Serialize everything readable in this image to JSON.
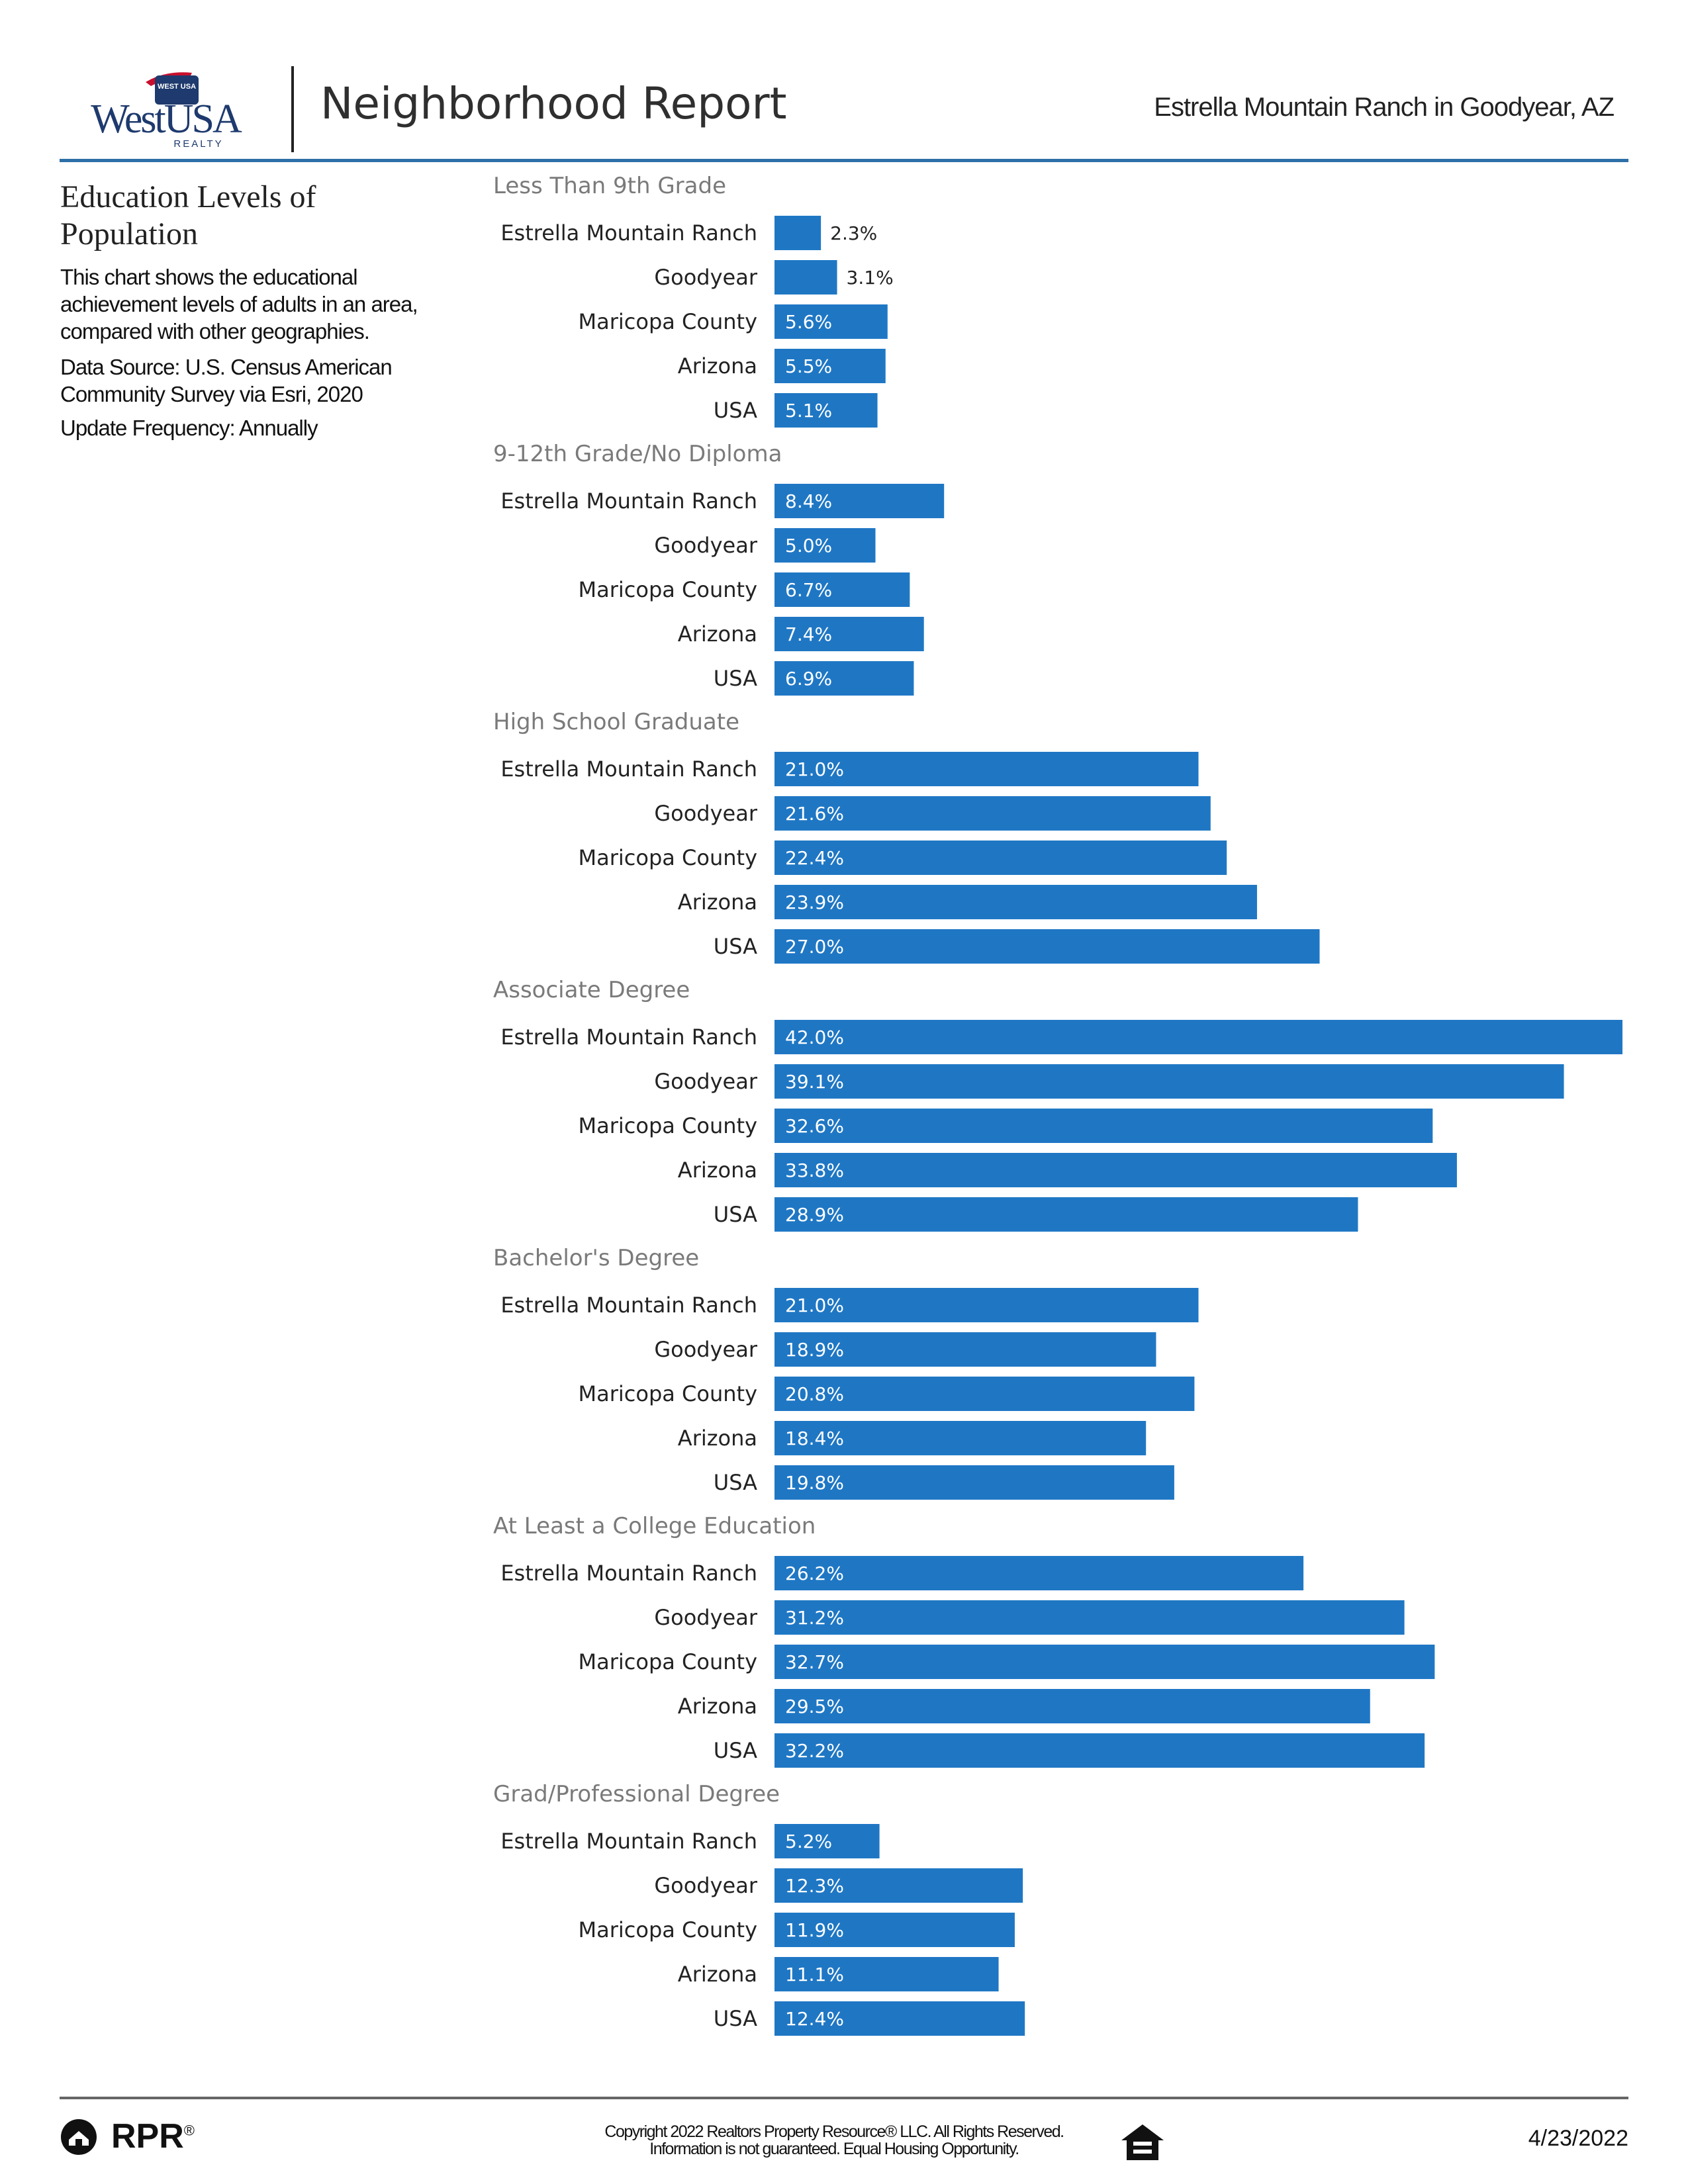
{
  "header": {
    "brand_badge": "WEST USA",
    "brand_name": "WestUSA",
    "brand_sub": "REALTY",
    "title": "Neighborhood Report",
    "location": "Estrella Mountain Ranch in Goodyear, AZ"
  },
  "sidebar": {
    "title": "Education Levels of Population",
    "description": "This chart shows the educational achievement levels of adults in an area, compared with other geographies.",
    "source": "Data Source: U.S. Census American Community Survey via Esri, 2020",
    "frequency": "Update Frequency: Annually"
  },
  "chart_data": {
    "type": "bar",
    "orientation": "horizontal",
    "categories": [
      "Estrella Mountain Ranch",
      "Goodyear",
      "Maricopa County",
      "Arizona",
      "USA"
    ],
    "value_format": "percent",
    "bar_color": "#1f77c4",
    "groups": [
      {
        "title": "Less Than 9th Grade",
        "values": [
          2.3,
          3.1,
          5.6,
          5.5,
          5.1
        ],
        "labels": [
          "2.3%",
          "3.1%",
          "5.6%",
          "5.5%",
          "5.1%"
        ]
      },
      {
        "title": "9-12th Grade/No Diploma",
        "values": [
          8.4,
          5.0,
          6.7,
          7.4,
          6.9
        ],
        "labels": [
          "8.4%",
          "5.0%",
          "6.7%",
          "7.4%",
          "6.9%"
        ]
      },
      {
        "title": "High School Graduate",
        "values": [
          21.0,
          21.6,
          22.4,
          23.9,
          27.0
        ],
        "labels": [
          "21.0%",
          "21.6%",
          "22.4%",
          "23.9%",
          "27.0%"
        ]
      },
      {
        "title": "Associate Degree",
        "values": [
          42.0,
          39.1,
          32.6,
          33.8,
          28.9
        ],
        "labels": [
          "42.0%",
          "39.1%",
          "32.6%",
          "33.8%",
          "28.9%"
        ]
      },
      {
        "title": "Bachelor's Degree",
        "values": [
          21.0,
          18.9,
          20.8,
          18.4,
          19.8
        ],
        "labels": [
          "21.0%",
          "18.9%",
          "20.8%",
          "18.4%",
          "19.8%"
        ]
      },
      {
        "title": "At Least a College Education",
        "values": [
          26.2,
          31.2,
          32.7,
          29.5,
          32.2
        ],
        "labels": [
          "26.2%",
          "31.2%",
          "32.7%",
          "29.5%",
          "32.2%"
        ]
      },
      {
        "title": "Grad/Professional Degree",
        "values": [
          5.2,
          12.3,
          11.9,
          11.1,
          12.4
        ],
        "labels": [
          "5.2%",
          "12.3%",
          "11.9%",
          "11.1%",
          "12.4%"
        ]
      }
    ]
  },
  "footer": {
    "brand": "RPR",
    "brand_mark": "®",
    "copyright_line1": "Copyright 2022 Realtors Property Resource® LLC. All Rights Reserved.",
    "copyright_line2": "Information is not guaranteed. Equal Housing Opportunity.",
    "date": "4/23/2022"
  },
  "icons": {
    "logo": "westusa-logo-icon",
    "rpr": "rpr-logo-icon",
    "equal_housing": "equal-housing-icon"
  },
  "colors": {
    "accent_rule": "#2d6fa8",
    "bar": "#1f77c4",
    "group_title": "#7a7a7a"
  }
}
